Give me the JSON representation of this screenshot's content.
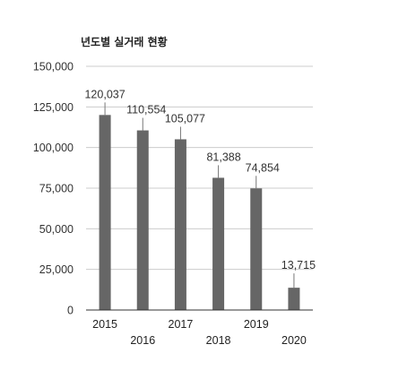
{
  "chart_data": {
    "type": "bar",
    "title": "년도별 실거래 현황",
    "xlabel": "",
    "ylabel": "",
    "categories": [
      "2015",
      "2016",
      "2017",
      "2018",
      "2019",
      "2020"
    ],
    "values": [
      120037,
      110554,
      105077,
      81388,
      74854,
      13715
    ],
    "value_labels": [
      "120,037",
      "110,554",
      "105,077",
      "81,388",
      "74,854",
      "13,715"
    ],
    "ylim": [
      0,
      150000
    ],
    "yticks": [
      0,
      25000,
      50000,
      75000,
      100000,
      125000,
      150000
    ],
    "ytick_labels": [
      "0",
      "25,000",
      "50,000",
      "75,000",
      "100,000",
      "125,000",
      "150,000"
    ],
    "grid": true,
    "legend": "none",
    "bar_color": "#666666"
  }
}
